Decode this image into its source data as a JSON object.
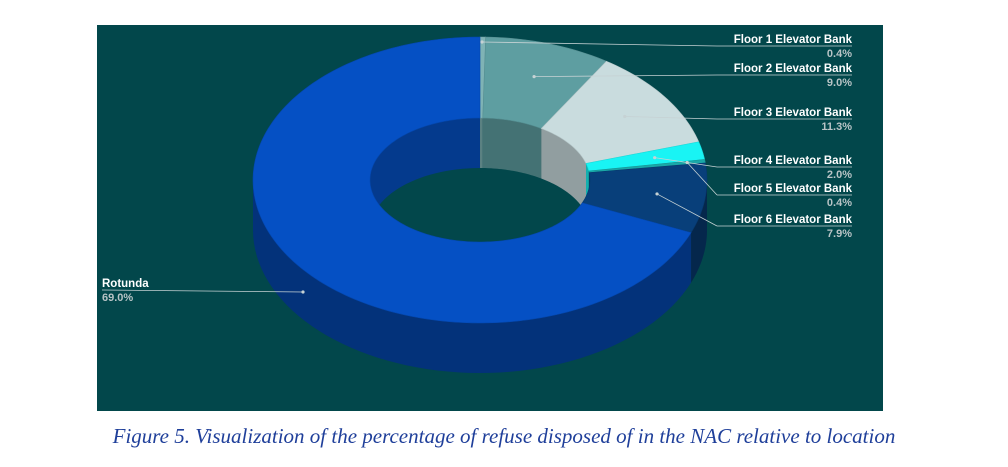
{
  "caption": "Figure 5. Visualization of the percentage of refuse disposed of in the NAC relative to location",
  "colors": {
    "background": "#02474b",
    "caption": "#1f3f9a"
  },
  "chart_data": {
    "type": "pie",
    "style": "3d-donut",
    "title": "",
    "labels_position": "outside with leader lines",
    "slices": [
      {
        "label": "Floor 1 Elevator Bank",
        "value": 0.4,
        "value_label": "0.4%",
        "color": "#7fb3b5"
      },
      {
        "label": "Floor 2 Elevator Bank",
        "value": 9.0,
        "value_label": "9.0%",
        "color": "#5e9ea1"
      },
      {
        "label": "Floor 3 Elevator Bank",
        "value": 11.3,
        "value_label": "11.3%",
        "color": "#c9dcde"
      },
      {
        "label": "Floor 4 Elevator Bank",
        "value": 2.0,
        "value_label": "2.0%",
        "color": "#19f4f4"
      },
      {
        "label": "Floor 5 Elevator Bank",
        "value": 0.4,
        "value_label": "0.4%",
        "color": "#1aa8a8"
      },
      {
        "label": "Floor 6 Elevator Bank",
        "value": 7.9,
        "value_label": "7.9%",
        "color": "#083f7a"
      },
      {
        "label": "Rotunda",
        "value": 69.0,
        "value_label": "69.0%",
        "color": "#0550c4"
      }
    ]
  }
}
